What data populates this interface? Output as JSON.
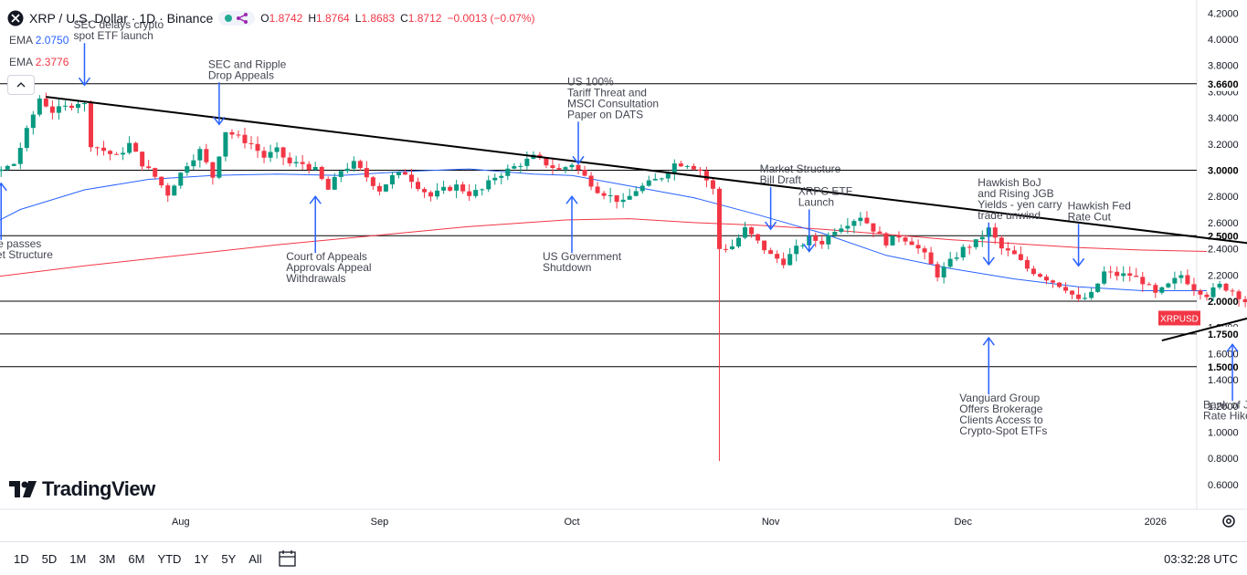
{
  "header": {
    "symbol": "XRP / U.S. Dollar · 1D · Binance",
    "open_label": "O",
    "open": "1.8742",
    "high_label": "H",
    "high": "1.8764",
    "low_label": "L",
    "low": "1.8683",
    "close_label": "C",
    "close": "1.8712",
    "change": "−0.0013 (−0.07%)"
  },
  "indicators": [
    {
      "label": "EMA",
      "value": "2.0750",
      "color": "#2962ff"
    },
    {
      "label": "EMA",
      "value": "2.3776",
      "color": "#f23645"
    }
  ],
  "brand": "TradingView",
  "toolbar": {
    "ranges": [
      "1D",
      "5D",
      "1M",
      "3M",
      "6M",
      "YTD",
      "1Y",
      "5Y",
      "All"
    ],
    "clock": "03:32:28 UTC"
  },
  "chart_data": {
    "type": "candlestick",
    "timeframe": "1D",
    "price_axis_ticks": [
      "4.2000",
      "4.0000",
      "3.8000",
      "3.6000",
      "3.4000",
      "3.2000",
      "3.0000",
      "2.8000",
      "2.6000",
      "2.4000",
      "2.2000",
      "2.0000",
      "1.8000",
      "1.6000",
      "1.4000",
      "1.2000",
      "1.0000",
      "0.8000",
      "0.6000"
    ],
    "price_axis_tick_values": [
      4.2,
      4.0,
      3.8,
      3.6,
      3.4,
      3.2,
      3.0,
      2.8,
      2.6,
      2.4,
      2.2,
      2.0,
      1.8,
      1.6,
      1.4,
      1.2,
      1.0,
      0.8,
      0.6
    ],
    "time_axis_labels": [
      "Aug",
      "Sep",
      "Oct",
      "Nov",
      "Dec",
      "2026"
    ],
    "time_axis_label_days": [
      15,
      46,
      76,
      107,
      137,
      167
    ],
    "horizontal_levels": [
      {
        "label": "3.6600",
        "value": 3.66
      },
      {
        "label": "3.0000",
        "value": 3.0
      },
      {
        "label": "2.5000",
        "value": 2.5
      },
      {
        "label": "2.0000",
        "value": 2.0
      },
      {
        "label": "1.7500",
        "value": 1.75
      },
      {
        "label": "1.5000",
        "value": 1.5
      }
    ],
    "last_price_label": "XRPUSD",
    "last_price": 1.8712,
    "trendlines": [
      {
        "from": [
          -6,
          3.56
        ],
        "to": [
          187,
          2.41
        ],
        "color": "#000000"
      },
      {
        "from": [
          168,
          1.7
        ],
        "to": [
          183,
          1.89
        ],
        "color": "#000000"
      }
    ],
    "ema_fast_color": "#2962ff",
    "ema_slow_color": "#f23645",
    "ema_fast": [
      [
        -29,
        2.22
      ],
      [
        -20,
        2.45
      ],
      [
        -10,
        2.7
      ],
      [
        0,
        2.85
      ],
      [
        10,
        2.93
      ],
      [
        20,
        2.96
      ],
      [
        30,
        2.97
      ],
      [
        40,
        2.96
      ],
      [
        50,
        2.99
      ],
      [
        60,
        3.01
      ],
      [
        70,
        2.97
      ],
      [
        76,
        2.96
      ],
      [
        85,
        2.88
      ],
      [
        95,
        2.79
      ],
      [
        105,
        2.66
      ],
      [
        115,
        2.52
      ],
      [
        125,
        2.35
      ],
      [
        135,
        2.25
      ],
      [
        145,
        2.17
      ],
      [
        155,
        2.11
      ],
      [
        165,
        2.08
      ],
      [
        175,
        2.08
      ]
    ],
    "ema_slow": [
      [
        -29,
        2.11
      ],
      [
        -15,
        2.18
      ],
      [
        0,
        2.27
      ],
      [
        15,
        2.35
      ],
      [
        30,
        2.43
      ],
      [
        45,
        2.5
      ],
      [
        60,
        2.57
      ],
      [
        75,
        2.62
      ],
      [
        85,
        2.63
      ],
      [
        95,
        2.6
      ],
      [
        105,
        2.58
      ],
      [
        115,
        2.55
      ],
      [
        125,
        2.51
      ],
      [
        135,
        2.47
      ],
      [
        145,
        2.44
      ],
      [
        155,
        2.41
      ],
      [
        165,
        2.39
      ],
      [
        175,
        2.38
      ]
    ],
    "ohlc_path": [
      [
        -29,
        2.18
      ],
      [
        -27,
        2.2
      ],
      [
        -25,
        2.24
      ],
      [
        -23,
        2.3
      ],
      [
        -21,
        2.4
      ],
      [
        -19,
        2.55
      ],
      [
        -17,
        2.8
      ],
      [
        -15,
        2.95
      ],
      [
        -13,
        3.0
      ],
      [
        -11,
        3.05
      ],
      [
        -9,
        3.3
      ],
      [
        -7,
        3.55
      ],
      [
        -5,
        3.45
      ],
      [
        -3,
        3.48
      ],
      [
        -1,
        3.52
      ],
      [
        0,
        3.5
      ],
      [
        1,
        3.2
      ],
      [
        3,
        3.15
      ],
      [
        5,
        3.1
      ],
      [
        7,
        3.2
      ],
      [
        9,
        3.05
      ],
      [
        11,
        2.95
      ],
      [
        13,
        2.82
      ],
      [
        14,
        2.9
      ],
      [
        16,
        3.05
      ],
      [
        18,
        3.15
      ],
      [
        20,
        2.95
      ],
      [
        22,
        3.3
      ],
      [
        24,
        3.25
      ],
      [
        26,
        3.2
      ],
      [
        28,
        3.1
      ],
      [
        30,
        3.15
      ],
      [
        32,
        3.05
      ],
      [
        34,
        3.05
      ],
      [
        36,
        3.0
      ],
      [
        38,
        2.85
      ],
      [
        40,
        3.0
      ],
      [
        42,
        3.05
      ],
      [
        44,
        2.95
      ],
      [
        46,
        2.85
      ],
      [
        48,
        2.95
      ],
      [
        50,
        2.98
      ],
      [
        52,
        2.88
      ],
      [
        54,
        2.8
      ],
      [
        56,
        2.85
      ],
      [
        58,
        2.88
      ],
      [
        60,
        2.82
      ],
      [
        62,
        2.85
      ],
      [
        64,
        2.95
      ],
      [
        66,
        3.0
      ],
      [
        68,
        3.05
      ],
      [
        70,
        3.1
      ],
      [
        72,
        3.05
      ],
      [
        74,
        3.0
      ],
      [
        76,
        3.05
      ],
      [
        78,
        2.95
      ],
      [
        80,
        2.85
      ],
      [
        82,
        2.8
      ],
      [
        84,
        2.75
      ],
      [
        86,
        2.85
      ],
      [
        88,
        2.9
      ],
      [
        90,
        2.95
      ],
      [
        92,
        3.05
      ],
      [
        94,
        3.05
      ],
      [
        96,
        3.0
      ],
      [
        98,
        2.85
      ],
      [
        99,
        2.4
      ],
      [
        101,
        2.42
      ],
      [
        103,
        2.55
      ],
      [
        105,
        2.45
      ],
      [
        107,
        2.35
      ],
      [
        109,
        2.3
      ],
      [
        111,
        2.4
      ],
      [
        113,
        2.48
      ],
      [
        115,
        2.45
      ],
      [
        117,
        2.55
      ],
      [
        119,
        2.6
      ],
      [
        121,
        2.65
      ],
      [
        123,
        2.55
      ],
      [
        125,
        2.45
      ],
      [
        127,
        2.5
      ],
      [
        129,
        2.45
      ],
      [
        131,
        2.35
      ],
      [
        133,
        2.2
      ],
      [
        135,
        2.3
      ],
      [
        137,
        2.4
      ],
      [
        139,
        2.45
      ],
      [
        141,
        2.55
      ],
      [
        143,
        2.4
      ],
      [
        145,
        2.35
      ],
      [
        147,
        2.25
      ],
      [
        149,
        2.2
      ],
      [
        151,
        2.15
      ],
      [
        153,
        2.1
      ],
      [
        155,
        2.0
      ],
      [
        157,
        2.05
      ],
      [
        159,
        2.22
      ],
      [
        161,
        2.2
      ],
      [
        163,
        2.2
      ],
      [
        165,
        2.15
      ],
      [
        167,
        2.05
      ],
      [
        169,
        2.12
      ],
      [
        171,
        2.2
      ],
      [
        173,
        2.1
      ],
      [
        175,
        2.05
      ],
      [
        177,
        2.12
      ],
      [
        179,
        2.08
      ],
      [
        181,
        2.0
      ],
      [
        183,
        1.98
      ],
      [
        185,
        1.92
      ],
      [
        187,
        1.85
      ],
      [
        189,
        1.8
      ],
      [
        191,
        1.92
      ],
      [
        193,
        1.95
      ],
      [
        195,
        1.9
      ],
      [
        197,
        1.85
      ],
      [
        199,
        1.88
      ],
      [
        201,
        1.87
      ]
    ],
    "flash_low": {
      "day": 99,
      "low": 0.78
    },
    "annotations": [
      {
        "lines": [
          "SEC delays crypto",
          "spot ETF launch"
        ],
        "day": 0,
        "price": 3.65,
        "arrow": "down"
      },
      {
        "lines": [
          "SEC and Ripple",
          "Drop Appeals"
        ],
        "day": 21,
        "price": 3.35,
        "arrow": "down"
      },
      {
        "lines": [
          "US 100%",
          "Tariff Threat and",
          "MSCI Consultation",
          "Paper on DATS"
        ],
        "day": 77,
        "price": 3.05,
        "arrow": "down"
      },
      {
        "lines": [
          "Market Structure",
          "Bill Draft"
        ],
        "day": 107,
        "price": 2.55,
        "arrow": "down"
      },
      {
        "lines": [
          "XRPC ETF",
          "Launch"
        ],
        "day": 113,
        "price": 2.38,
        "arrow": "down"
      },
      {
        "lines": [
          "Hawkish BoJ",
          "and Rising JGB",
          "Yields - yen carry",
          "trade unwind"
        ],
        "day": 141,
        "price": 2.28,
        "arrow": "down"
      },
      {
        "lines": [
          "Hawkish Fed",
          "Rate Cut"
        ],
        "day": 155,
        "price": 2.27,
        "arrow": "down"
      },
      {
        "lines": [
          "House passes",
          "Market Structure",
          "Bill"
        ],
        "day": -13,
        "price": 2.9,
        "arrow": "up"
      },
      {
        "lines": [
          "Court of Appeals",
          "Approvals Appeal",
          "Withdrawals"
        ],
        "day": 36,
        "price": 2.8,
        "arrow": "up"
      },
      {
        "lines": [
          "US Government",
          "Shutdown"
        ],
        "day": 76,
        "price": 2.8,
        "arrow": "up"
      },
      {
        "lines": [
          "Vanguard Group",
          "Offers Brokerage",
          "Clients Access to",
          "Crypto-Spot ETFs"
        ],
        "day": 141,
        "price": 1.72,
        "arrow": "up"
      },
      {
        "lines": [
          "Bank of Japan",
          "Rate Hike"
        ],
        "day": 179,
        "price": 1.67,
        "arrow": "up"
      }
    ]
  }
}
